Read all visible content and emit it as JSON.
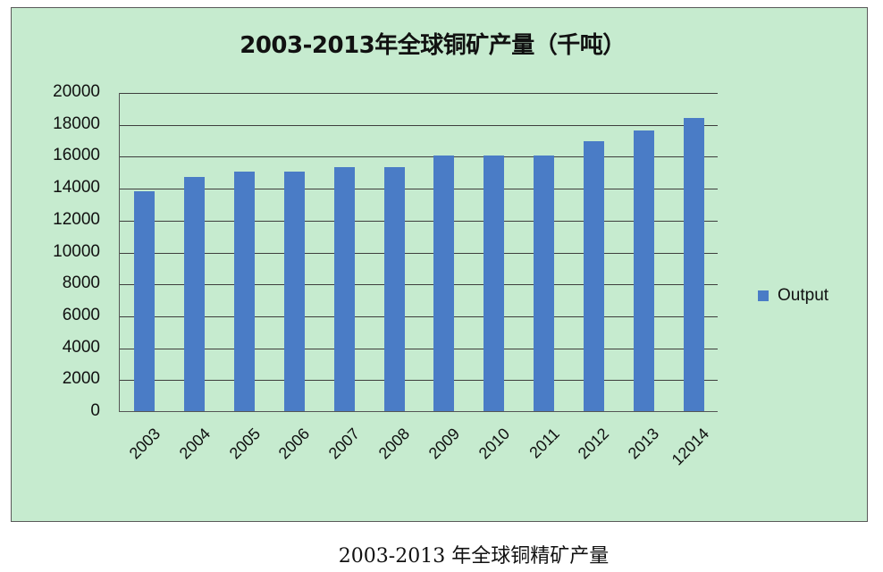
{
  "chart_data": {
    "type": "bar",
    "title": "2003-2013年全球铜矿产量（千吨）",
    "xlabel": "",
    "ylabel": "",
    "categories": [
      "2003",
      "2004",
      "2005",
      "2006",
      "2007",
      "2008",
      "2009",
      "2010",
      "2011",
      "2012",
      "2013",
      "12014"
    ],
    "series": [
      {
        "name": "Output",
        "color": "#4a7cc6",
        "values": [
          13800,
          14700,
          15000,
          15000,
          15300,
          15300,
          16000,
          16000,
          16000,
          16900,
          17600,
          18400
        ]
      }
    ],
    "ylim": [
      0,
      20000
    ],
    "yticks": [
      "0",
      "2000",
      "4000",
      "6000",
      "8000",
      "10000",
      "12000",
      "14000",
      "16000",
      "18000",
      "20000"
    ],
    "grid": true,
    "legend_position": "right",
    "background": "#c6ebcf"
  },
  "caption": "2003-2013 年全球铜精矿产量"
}
